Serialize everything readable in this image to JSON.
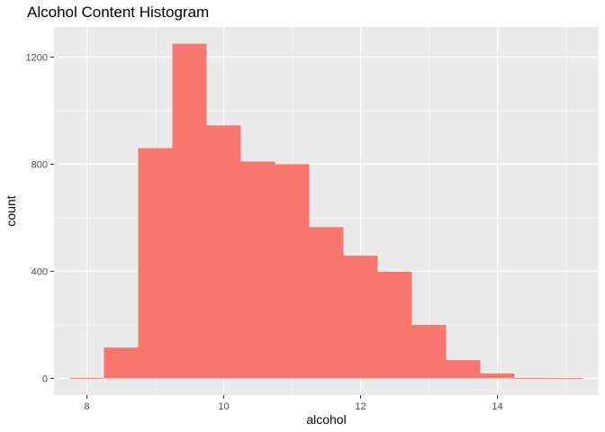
{
  "chart_data": {
    "type": "bar",
    "title": "Alcohol Content Histogram",
    "xlabel": "alcohol",
    "ylabel": "count",
    "bin_width": 0.5,
    "bins": [
      {
        "x_start": 7.75,
        "x_end": 8.25,
        "count": 2
      },
      {
        "x_start": 8.25,
        "x_end": 8.75,
        "count": 115
      },
      {
        "x_start": 8.75,
        "x_end": 9.25,
        "count": 860
      },
      {
        "x_start": 9.25,
        "x_end": 9.75,
        "count": 1250
      },
      {
        "x_start": 9.75,
        "x_end": 10.25,
        "count": 945
      },
      {
        "x_start": 10.25,
        "x_end": 10.75,
        "count": 810
      },
      {
        "x_start": 10.75,
        "x_end": 11.25,
        "count": 800
      },
      {
        "x_start": 11.25,
        "x_end": 11.75,
        "count": 565
      },
      {
        "x_start": 11.75,
        "x_end": 12.25,
        "count": 458
      },
      {
        "x_start": 12.25,
        "x_end": 12.75,
        "count": 398
      },
      {
        "x_start": 12.75,
        "x_end": 13.25,
        "count": 200
      },
      {
        "x_start": 13.25,
        "x_end": 13.75,
        "count": 68
      },
      {
        "x_start": 13.75,
        "x_end": 14.25,
        "count": 18
      },
      {
        "x_start": 14.25,
        "x_end": 14.75,
        "count": 0
      },
      {
        "x_start": 14.75,
        "x_end": 15.25,
        "count": 1
      }
    ],
    "x_ticks": [
      "8",
      "10",
      "12",
      "14"
    ],
    "y_ticks": [
      "0",
      "400",
      "800",
      "1200"
    ],
    "xlim": [
      7.52,
      15.48
    ],
    "ylim": [
      -62.5,
      1312.5
    ],
    "grid": true,
    "panel_background": "#ebebeb",
    "gridline_color": "#ffffff",
    "bar_color": "#f8766d"
  }
}
